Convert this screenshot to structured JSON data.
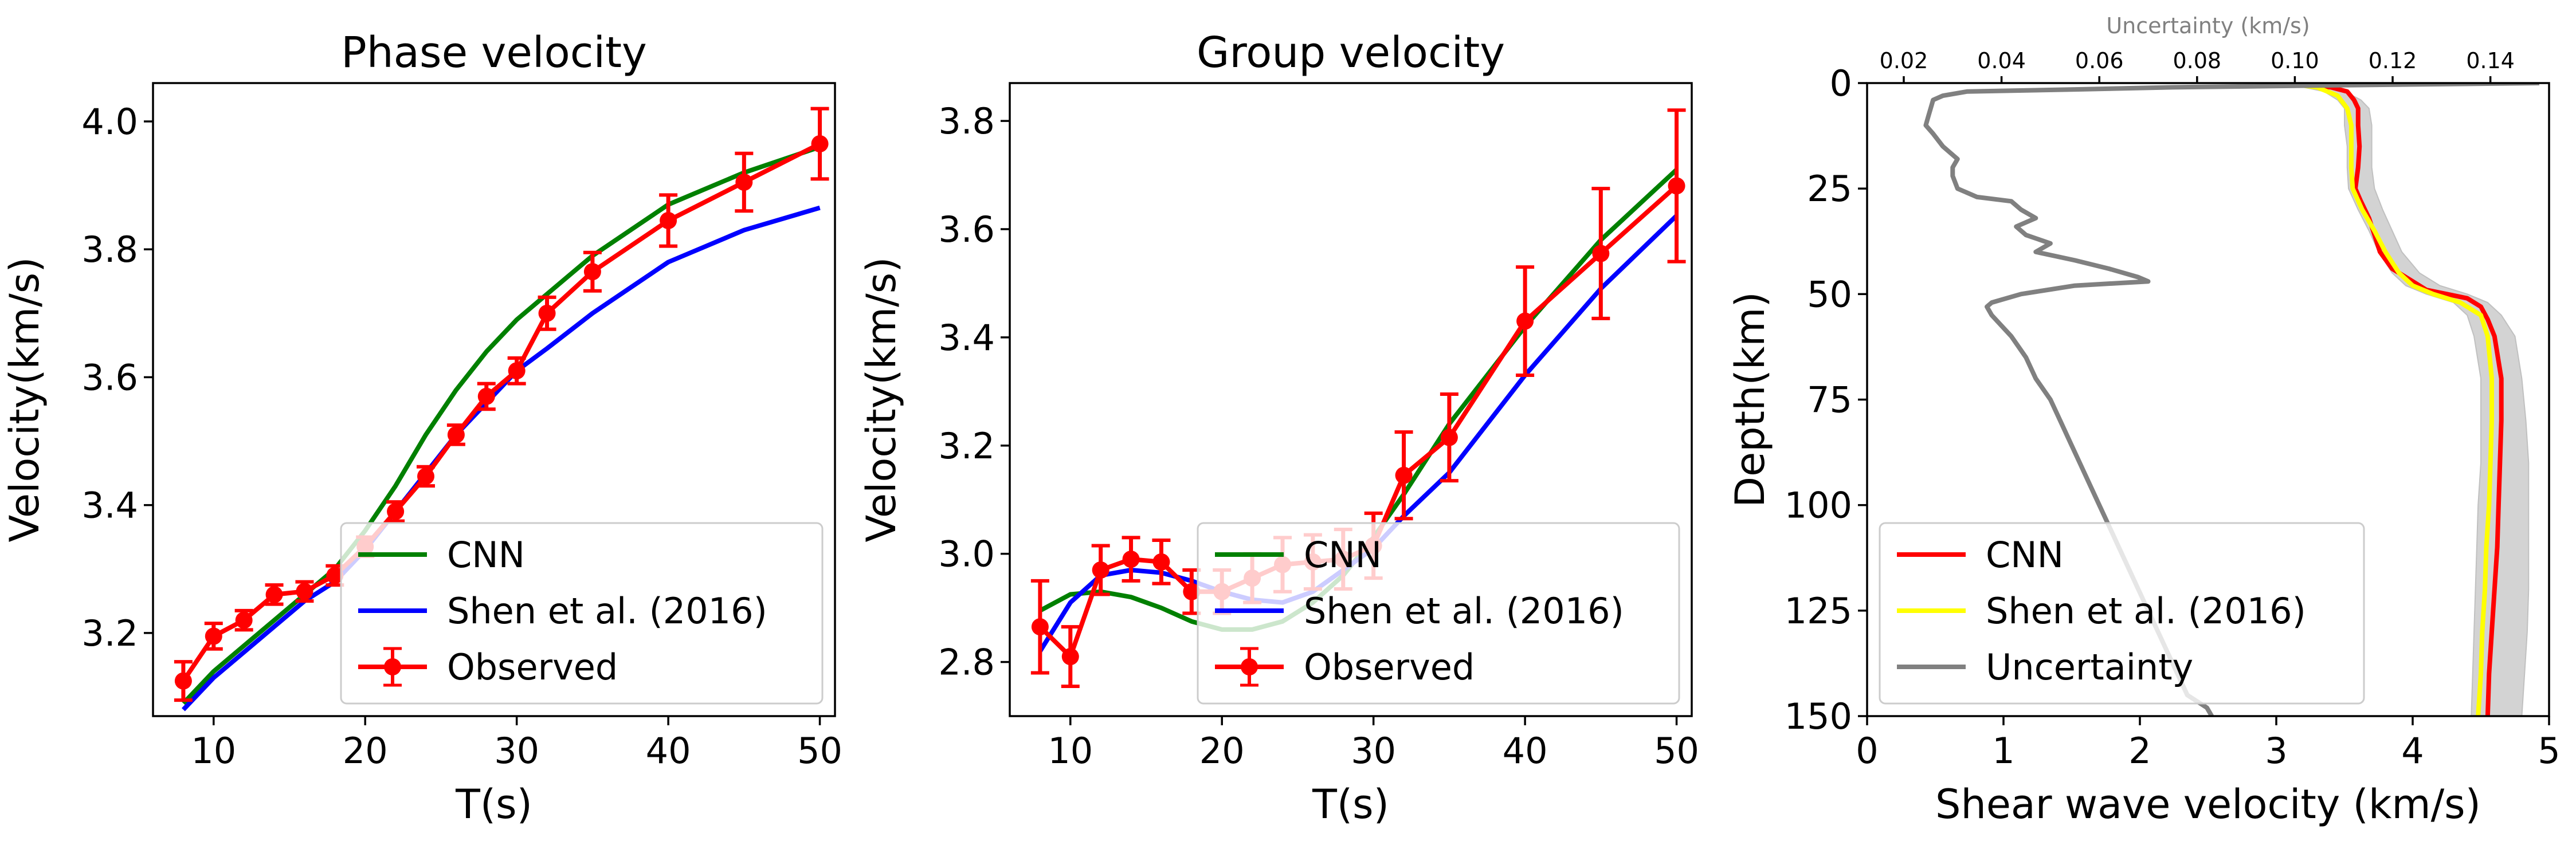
{
  "colors": {
    "cnn_dispersion": "#008000",
    "cnn_profile": "#ff0000",
    "shen_dispersion": "#0000ff",
    "shen_profile": "#ffff00",
    "observed": "#ff0000",
    "uncertainty": "#808080",
    "uncertainty_band": "#d3d3d3"
  },
  "chart_data": [
    {
      "type": "line",
      "title": "Phase velocity",
      "xlabel": "T(s)",
      "ylabel": "Velocity(km/s)",
      "xlim": [
        6,
        51
      ],
      "ylim": [
        3.07,
        4.06
      ],
      "xticks": [
        10,
        20,
        30,
        40,
        50
      ],
      "yticks": [
        3.2,
        3.4,
        3.6,
        3.8,
        4.0
      ],
      "xtick_labels": [
        "10",
        "20",
        "30",
        "40",
        "50"
      ],
      "ytick_labels": [
        "3.2",
        "3.4",
        "3.6",
        "3.8",
        "4.0"
      ],
      "legend_position": "lower-right",
      "series": [
        {
          "name": "CNN",
          "style": "line",
          "color": "#008000",
          "x": [
            8,
            10,
            12,
            14,
            16,
            18,
            20,
            22,
            24,
            26,
            28,
            30,
            32,
            35,
            40,
            45,
            50
          ],
          "y": [
            3.09,
            3.14,
            3.18,
            3.22,
            3.26,
            3.3,
            3.36,
            3.43,
            3.51,
            3.58,
            3.64,
            3.69,
            3.73,
            3.79,
            3.87,
            3.92,
            3.96
          ]
        },
        {
          "name": "Shen et al. (2016)",
          "style": "line",
          "color": "#0000ff",
          "x": [
            8,
            10,
            12,
            14,
            16,
            18,
            20,
            22,
            24,
            26,
            28,
            30,
            32,
            35,
            40,
            45,
            50
          ],
          "y": [
            3.08,
            3.13,
            3.17,
            3.21,
            3.25,
            3.28,
            3.33,
            3.39,
            3.45,
            3.51,
            3.56,
            3.61,
            3.645,
            3.7,
            3.78,
            3.83,
            3.865
          ]
        },
        {
          "name": "Observed",
          "style": "errorbar",
          "color": "#ff0000",
          "x": [
            8,
            10,
            12,
            14,
            16,
            18,
            20,
            22,
            24,
            26,
            28,
            30,
            32,
            35,
            40,
            45,
            50
          ],
          "y": [
            3.125,
            3.195,
            3.22,
            3.26,
            3.265,
            3.29,
            3.335,
            3.39,
            3.445,
            3.51,
            3.57,
            3.61,
            3.7,
            3.765,
            3.845,
            3.905,
            3.965
          ],
          "err": [
            0.03,
            0.02,
            0.015,
            0.015,
            0.015,
            0.015,
            0.015,
            0.015,
            0.015,
            0.015,
            0.02,
            0.02,
            0.025,
            0.03,
            0.04,
            0.045,
            0.055
          ]
        }
      ]
    },
    {
      "type": "line",
      "title": "Group velocity",
      "xlabel": "T(s)",
      "ylabel": "Velocity(km/s)",
      "xlim": [
        6,
        51
      ],
      "ylim": [
        2.7,
        3.87
      ],
      "xticks": [
        10,
        20,
        30,
        40,
        50
      ],
      "yticks": [
        2.8,
        3.0,
        3.2,
        3.4,
        3.6,
        3.8
      ],
      "xtick_labels": [
        "10",
        "20",
        "30",
        "40",
        "50"
      ],
      "ytick_labels": [
        "2.8",
        "3.0",
        "3.2",
        "3.4",
        "3.6",
        "3.8"
      ],
      "legend_position": "lower-right",
      "series": [
        {
          "name": "CNN",
          "style": "line",
          "color": "#008000",
          "x": [
            8,
            10,
            12,
            14,
            16,
            18,
            20,
            22,
            24,
            26,
            28,
            30,
            32,
            35,
            40,
            45,
            50
          ],
          "y": [
            2.895,
            2.925,
            2.93,
            2.92,
            2.9,
            2.875,
            2.86,
            2.86,
            2.875,
            2.91,
            2.96,
            3.03,
            3.11,
            3.24,
            3.42,
            3.58,
            3.71
          ]
        },
        {
          "name": "Shen et al. (2016)",
          "style": "line",
          "color": "#0000ff",
          "x": [
            8,
            10,
            12,
            14,
            16,
            18,
            20,
            22,
            24,
            26,
            28,
            30,
            32,
            35,
            40,
            45,
            50
          ],
          "y": [
            2.82,
            2.91,
            2.96,
            2.97,
            2.965,
            2.95,
            2.93,
            2.915,
            2.91,
            2.93,
            2.97,
            3.01,
            3.07,
            3.15,
            3.33,
            3.49,
            3.625
          ]
        },
        {
          "name": "Observed",
          "style": "errorbar",
          "color": "#ff0000",
          "x": [
            8,
            10,
            12,
            14,
            16,
            18,
            20,
            22,
            24,
            26,
            28,
            30,
            32,
            35,
            40,
            45,
            50
          ],
          "y": [
            2.865,
            2.81,
            2.97,
            2.99,
            2.985,
            2.93,
            2.93,
            2.955,
            2.98,
            2.985,
            2.99,
            3.015,
            3.145,
            3.215,
            3.43,
            3.555,
            3.68
          ],
          "err": [
            0.085,
            0.055,
            0.045,
            0.04,
            0.04,
            0.04,
            0.04,
            0.045,
            0.05,
            0.05,
            0.055,
            0.06,
            0.08,
            0.08,
            0.1,
            0.12,
            0.14
          ]
        }
      ]
    },
    {
      "type": "line",
      "xlabel": "Shear wave velocity (km/s)",
      "ylabel": "Depth(km)",
      "top_xlabel": "Uncertainty (km/s)",
      "xlim": [
        0,
        5
      ],
      "ylim": [
        150,
        0
      ],
      "top_xlim": [
        0.0125,
        0.152
      ],
      "xticks": [
        0,
        1,
        2,
        3,
        4,
        5
      ],
      "yticks": [
        0,
        25,
        50,
        75,
        100,
        125,
        150
      ],
      "top_xticks": [
        0.02,
        0.04,
        0.06,
        0.08,
        0.1,
        0.12,
        0.14
      ],
      "xtick_labels": [
        "0",
        "1",
        "2",
        "3",
        "4",
        "5"
      ],
      "ytick_labels": [
        "0",
        "25",
        "50",
        "75",
        "100",
        "125",
        "150"
      ],
      "top_xtick_labels": [
        "0.02",
        "0.04",
        "0.06",
        "0.08",
        "0.10",
        "0.12",
        "0.14"
      ],
      "legend_position": "lower-left",
      "band": {
        "depth": [
          0,
          2,
          4,
          6,
          10,
          15,
          20,
          25,
          30,
          35,
          40,
          45,
          48,
          50,
          52,
          55,
          60,
          70,
          80,
          90,
          100,
          110,
          120,
          130,
          140,
          150
        ],
        "lower": [
          3.05,
          3.35,
          3.45,
          3.5,
          3.5,
          3.52,
          3.52,
          3.53,
          3.6,
          3.68,
          3.75,
          3.85,
          3.95,
          4.1,
          4.3,
          4.4,
          4.45,
          4.5,
          4.5,
          4.5,
          4.48,
          4.47,
          4.46,
          4.45,
          4.44,
          4.43
        ],
        "upper": [
          3.3,
          3.5,
          3.62,
          3.68,
          3.7,
          3.7,
          3.7,
          3.72,
          3.78,
          3.85,
          3.92,
          4.05,
          4.2,
          4.4,
          4.55,
          4.65,
          4.75,
          4.8,
          4.83,
          4.85,
          4.85,
          4.85,
          4.85,
          4.84,
          4.82,
          4.8
        ]
      },
      "series": [
        {
          "name": "CNN",
          "color": "#ff0000",
          "depth": [
            0,
            1,
            2,
            4,
            6,
            10,
            15,
            20,
            25,
            28,
            32,
            36,
            40,
            44,
            47,
            49,
            50,
            51,
            53,
            56,
            60,
            70,
            80,
            90,
            100,
            110,
            120,
            130,
            140,
            150
          ],
          "x": [
            3.05,
            3.4,
            3.52,
            3.57,
            3.6,
            3.6,
            3.61,
            3.6,
            3.58,
            3.62,
            3.68,
            3.72,
            3.76,
            3.85,
            4.0,
            4.1,
            4.25,
            4.4,
            4.5,
            4.55,
            4.6,
            4.65,
            4.65,
            4.64,
            4.63,
            4.62,
            4.6,
            4.58,
            4.56,
            4.55
          ]
        },
        {
          "name": "Shen et al. (2016)",
          "color": "#ffff00",
          "depth": [
            0,
            1,
            3,
            6,
            10,
            15,
            20,
            25,
            30,
            35,
            40,
            45,
            48,
            50,
            52,
            55,
            60,
            70,
            80,
            90,
            100,
            110,
            120,
            130,
            140,
            150
          ],
          "x": [
            3.05,
            3.3,
            3.45,
            3.52,
            3.55,
            3.55,
            3.55,
            3.56,
            3.63,
            3.72,
            3.8,
            3.9,
            4.0,
            4.15,
            4.35,
            4.5,
            4.55,
            4.58,
            4.58,
            4.57,
            4.56,
            4.54,
            4.53,
            4.51,
            4.5,
            4.48
          ]
        },
        {
          "name": "Uncertainty",
          "color": "#808080",
          "axis": "top",
          "depth": [
            0,
            0.5,
            1,
            1.5,
            2,
            3,
            4,
            6,
            8,
            10,
            12,
            15,
            18,
            20,
            22,
            25,
            27,
            28,
            30,
            32,
            34,
            36,
            38,
            40,
            42,
            44,
            46,
            47,
            48,
            50,
            52,
            53,
            55,
            60,
            65,
            70,
            75,
            80,
            85,
            90,
            95,
            100,
            105,
            110,
            115,
            120,
            125,
            130,
            135,
            140,
            145,
            148,
            150
          ],
          "x": [
            0.15,
            0.11,
            0.075,
            0.055,
            0.033,
            0.028,
            0.026,
            0.0255,
            0.025,
            0.0245,
            0.026,
            0.028,
            0.031,
            0.03,
            0.03,
            0.031,
            0.035,
            0.042,
            0.044,
            0.047,
            0.043,
            0.045,
            0.05,
            0.047,
            0.055,
            0.062,
            0.068,
            0.07,
            0.055,
            0.044,
            0.038,
            0.037,
            0.038,
            0.042,
            0.045,
            0.047,
            0.05,
            0.052,
            0.054,
            0.056,
            0.058,
            0.06,
            0.062,
            0.064,
            0.066,
            0.068,
            0.07,
            0.072,
            0.074,
            0.076,
            0.078,
            0.082,
            0.083
          ]
        }
      ]
    }
  ]
}
